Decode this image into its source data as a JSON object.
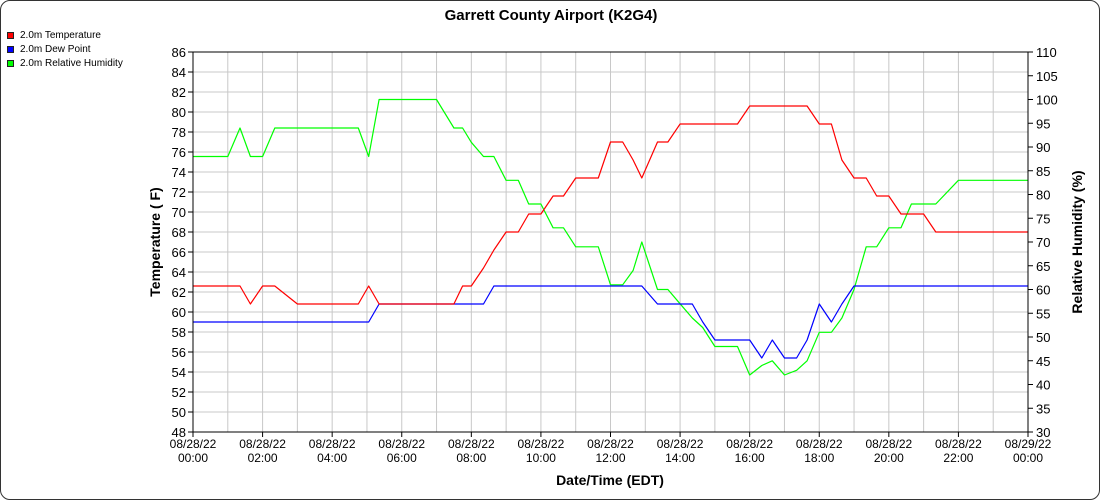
{
  "chart_data": {
    "type": "line",
    "title": "Garrett County Airport (K2G4)",
    "xlabel": "Date/Time (EDT)",
    "ylabel": "Temperature ( F)",
    "y2label": "Relative Humidity (%)",
    "ylim": [
      48,
      86
    ],
    "y2lim": [
      30,
      110
    ],
    "yticks": [
      48,
      50,
      52,
      54,
      56,
      58,
      60,
      62,
      64,
      66,
      68,
      70,
      72,
      74,
      76,
      78,
      80,
      82,
      84,
      86
    ],
    "y2ticks": [
      30,
      35,
      40,
      45,
      50,
      55,
      60,
      65,
      70,
      75,
      80,
      85,
      90,
      95,
      100,
      105,
      110
    ],
    "xlim_hours": [
      0,
      24
    ],
    "grid": true,
    "legend_position": "top-left",
    "x_ticks": [
      {
        "hour": 0,
        "date": "08/28/22",
        "time": "00:00"
      },
      {
        "hour": 2,
        "date": "08/28/22",
        "time": "02:00"
      },
      {
        "hour": 4,
        "date": "08/28/22",
        "time": "04:00"
      },
      {
        "hour": 6,
        "date": "08/28/22",
        "time": "06:00"
      },
      {
        "hour": 8,
        "date": "08/28/22",
        "time": "08:00"
      },
      {
        "hour": 10,
        "date": "08/28/22",
        "time": "10:00"
      },
      {
        "hour": 12,
        "date": "08/28/22",
        "time": "12:00"
      },
      {
        "hour": 14,
        "date": "08/28/22",
        "time": "14:00"
      },
      {
        "hour": 16,
        "date": "08/28/22",
        "time": "16:00"
      },
      {
        "hour": 18,
        "date": "08/28/22",
        "time": "18:00"
      },
      {
        "hour": 20,
        "date": "08/28/22",
        "time": "20:00"
      },
      {
        "hour": 22,
        "date": "08/28/22",
        "time": "22:00"
      },
      {
        "hour": 24,
        "date": "08/29/22",
        "time": "00:00"
      }
    ],
    "series": [
      {
        "name": "2.0m Temperature",
        "color": "#ff0000",
        "axis": "left",
        "x": [
          0,
          1,
          1.35,
          1.65,
          2.0,
          2.35,
          3.0,
          4.0,
          4.75,
          5.05,
          5.35,
          6.0,
          7.0,
          7.5,
          7.75,
          8.0,
          8.35,
          8.65,
          9.0,
          9.35,
          9.65,
          10.0,
          10.35,
          10.65,
          11.0,
          11.35,
          11.65,
          12.0,
          12.35,
          12.65,
          12.9,
          13.35,
          13.65,
          14.0,
          14.35,
          15.0,
          15.35,
          15.65,
          16.0,
          17.0,
          17.35,
          17.65,
          18.0,
          18.35,
          18.65,
          19.0,
          19.35,
          19.65,
          20.0,
          20.35,
          20.65,
          21.0,
          21.35,
          22.0,
          23.0,
          24.0
        ],
        "y": [
          62.6,
          62.6,
          62.6,
          60.8,
          62.6,
          62.6,
          60.8,
          60.8,
          60.8,
          62.6,
          60.8,
          60.8,
          60.8,
          60.8,
          62.6,
          62.6,
          64.4,
          66.2,
          68.0,
          68.0,
          69.8,
          69.8,
          71.6,
          71.6,
          73.4,
          73.4,
          73.4,
          77.0,
          77.0,
          75.2,
          73.4,
          77.0,
          77.0,
          78.8,
          78.8,
          78.8,
          78.8,
          78.8,
          80.6,
          80.6,
          80.6,
          80.6,
          78.8,
          78.8,
          75.2,
          73.4,
          73.4,
          71.6,
          71.6,
          69.8,
          69.8,
          69.8,
          68.0,
          68.0,
          68.0,
          68.0
        ]
      },
      {
        "name": "2.0m Dew Point",
        "color": "#0000ff",
        "axis": "left",
        "x": [
          0,
          1,
          2,
          3,
          4,
          5.05,
          5.35,
          6.0,
          7.0,
          8.0,
          8.35,
          8.65,
          9.0,
          10.0,
          11.0,
          12.0,
          12.35,
          12.9,
          13.35,
          13.65,
          14.0,
          14.35,
          14.65,
          15.0,
          15.35,
          15.65,
          16.0,
          16.35,
          16.65,
          17.0,
          17.35,
          17.65,
          18.0,
          18.35,
          18.65,
          19.0,
          20.0,
          24.0
        ],
        "y": [
          59.0,
          59.0,
          59.0,
          59.0,
          59.0,
          59.0,
          60.8,
          60.8,
          60.8,
          60.8,
          60.8,
          62.6,
          62.6,
          62.6,
          62.6,
          62.6,
          62.6,
          62.6,
          60.8,
          60.8,
          60.8,
          60.8,
          59.0,
          57.2,
          57.2,
          57.2,
          57.2,
          55.4,
          57.2,
          55.4,
          55.4,
          57.2,
          60.8,
          59.0,
          60.8,
          62.6,
          62.6,
          62.6
        ]
      },
      {
        "name": "2.0m Relative Humidity",
        "color": "#00ff00",
        "axis": "right",
        "x": [
          0,
          1,
          1.35,
          1.65,
          2.0,
          2.35,
          3.0,
          4.0,
          4.75,
          5.05,
          5.35,
          6.0,
          7.0,
          7.5,
          7.75,
          8.0,
          8.35,
          8.65,
          9.0,
          9.35,
          9.65,
          10.0,
          10.35,
          10.65,
          11.0,
          11.35,
          11.65,
          12.0,
          12.35,
          12.65,
          12.9,
          13.35,
          13.65,
          14.0,
          14.35,
          14.65,
          15.0,
          15.35,
          15.65,
          16.0,
          16.35,
          16.65,
          17.0,
          17.35,
          17.65,
          18.0,
          18.35,
          18.65,
          19.0,
          19.35,
          19.65,
          20.0,
          20.35,
          20.65,
          21.0,
          21.35,
          22.0,
          23.0,
          24.0
        ],
        "y": [
          88,
          88,
          94,
          88,
          88,
          94,
          94,
          94,
          94,
          88,
          100,
          100,
          100,
          94,
          94,
          91,
          88,
          88,
          83,
          83,
          78,
          78,
          73,
          73,
          69,
          69,
          69,
          61,
          61,
          64,
          70,
          60,
          60,
          57,
          54,
          52,
          48,
          48,
          48,
          42,
          44,
          45,
          42,
          43,
          45,
          51,
          51,
          54,
          60,
          69,
          69,
          73,
          73,
          78,
          78,
          78,
          83,
          83,
          83
        ]
      }
    ]
  }
}
